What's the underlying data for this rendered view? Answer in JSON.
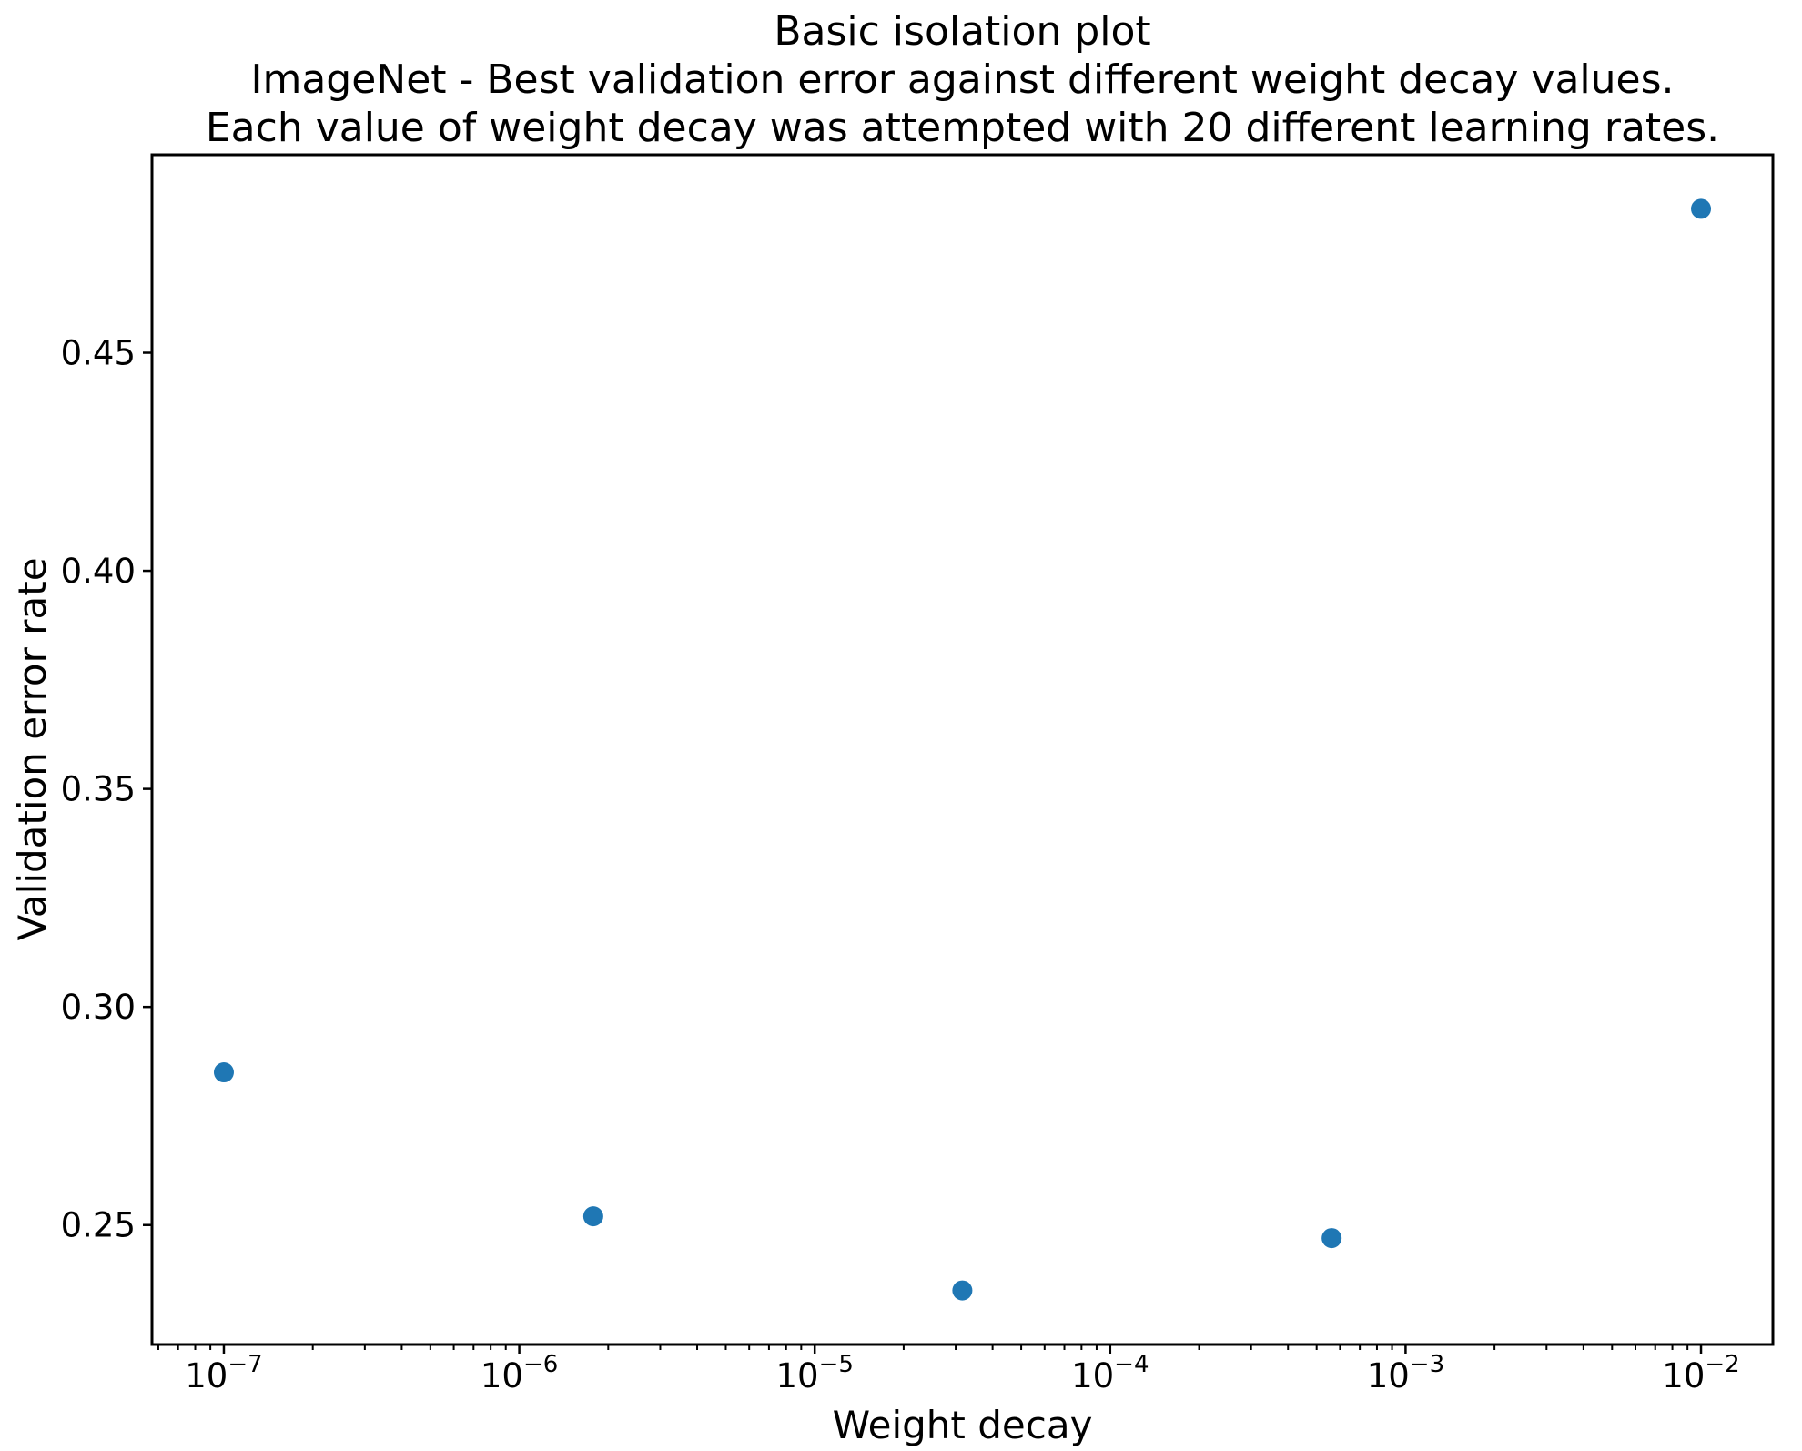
{
  "title": {
    "line1": "Basic isolation plot",
    "line2": "ImageNet - Best validation error against different weight decay values.",
    "line3": "Each value of weight decay was attempted with 20 different learning rates."
  },
  "chart_data": {
    "type": "scatter",
    "title": "Basic isolation plot",
    "subtitle1": "ImageNet - Best validation error against different weight decay values.",
    "subtitle2": "Each value of weight decay was attempted with 20 different learning rates.",
    "xlabel": "Weight decay",
    "ylabel": "Validation error rate",
    "x_scale": "log",
    "y_scale": "linear",
    "xlim_log10": [
      -7.2433,
      -1.7567
    ],
    "ylim": [
      0.2226,
      0.4954
    ],
    "grid": false,
    "legend": null,
    "marker_color": "#1f77b4",
    "axis_color": "#000000",
    "x_ticks": [
      {
        "value": 1e-07,
        "base": "10",
        "exp": "−7"
      },
      {
        "value": 1e-06,
        "base": "10",
        "exp": "−6"
      },
      {
        "value": 1e-05,
        "base": "10",
        "exp": "−5"
      },
      {
        "value": 0.0001,
        "base": "10",
        "exp": "−4"
      },
      {
        "value": 0.001,
        "base": "10",
        "exp": "−3"
      },
      {
        "value": 0.01,
        "base": "10",
        "exp": "−2"
      }
    ],
    "y_ticks": [
      {
        "value": 0.25,
        "label": "0.25"
      },
      {
        "value": 0.3,
        "label": "0.30"
      },
      {
        "value": 0.35,
        "label": "0.35"
      },
      {
        "value": 0.4,
        "label": "0.40"
      },
      {
        "value": 0.45,
        "label": "0.45"
      }
    ],
    "points": [
      {
        "x": 1e-07,
        "y": 0.285
      },
      {
        "x": 1.78e-06,
        "y": 0.252
      },
      {
        "x": 3.16e-05,
        "y": 0.235
      },
      {
        "x": 0.000562,
        "y": 0.247
      },
      {
        "x": 0.01,
        "y": 0.483
      }
    ]
  }
}
